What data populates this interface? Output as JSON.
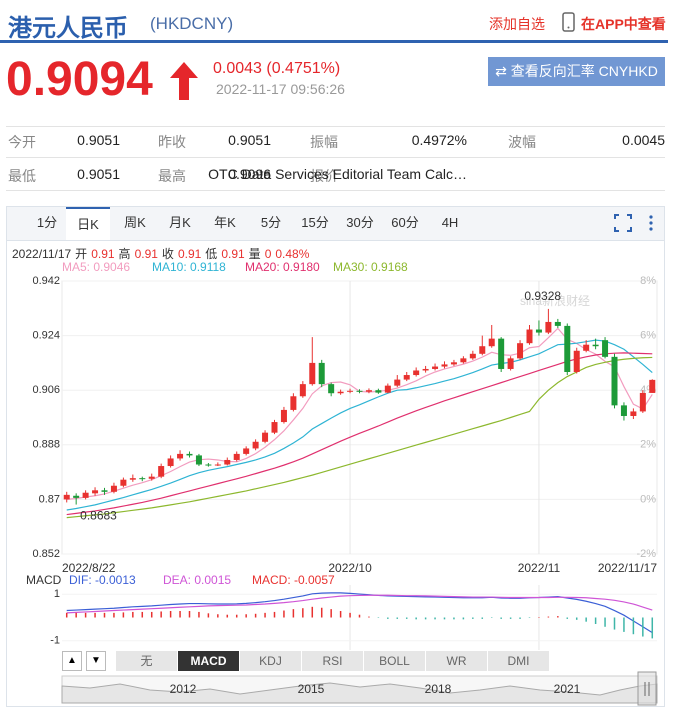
{
  "header": {
    "title": "港元人民币",
    "code": "(HKDCNY)",
    "add_watchlist": "添加自选",
    "view_in_app": "在APP中查看"
  },
  "quote": {
    "price": 0.9094,
    "change": "0.0043 (0.4751%)",
    "time": "2022-11-17 09:56:26",
    "reverse_button": "⇄ 查看反向汇率 CNYHKD"
  },
  "stats": {
    "rows": [
      [
        {
          "label": "今开",
          "value": 0.9051
        },
        {
          "label": "昨收",
          "value": 0.9051
        },
        {
          "label": "振幅",
          "value": "0.4972%"
        },
        {
          "label": "波幅",
          "value": 0.0045
        }
      ],
      [
        {
          "label": "最低",
          "value": 0.9051
        },
        {
          "label": "最高",
          "value": 0.9096
        },
        {
          "label": "报价",
          "value": "OTC Data Services Editorial Team Calc…"
        }
      ]
    ]
  },
  "tabs": {
    "items": [
      "1分",
      "日K",
      "周K",
      "月K",
      "年K",
      "5分",
      "15分",
      "30分",
      "60分",
      "4H"
    ],
    "active": 1
  },
  "chart_data": [
    {
      "type": "candlestick",
      "info": {
        "date": "2022/11/17",
        "items": [
          {
            "label": "开",
            "value": 0.91
          },
          {
            "label": "高",
            "value": 0.91
          },
          {
            "label": "收",
            "value": 0.91
          },
          {
            "label": "低",
            "value": 0.91
          },
          {
            "label": "量",
            "value": 0
          }
        ],
        "change": "0.48%"
      },
      "categories": [
        "2022/8/22",
        null,
        null,
        null,
        null,
        null,
        null,
        null,
        null,
        null,
        null,
        null,
        null,
        null,
        null,
        null,
        null,
        null,
        null,
        null,
        null,
        null,
        null,
        null,
        null,
        null,
        null,
        null,
        null,
        null,
        "2022/10",
        null,
        null,
        null,
        null,
        null,
        null,
        null,
        null,
        null,
        null,
        null,
        null,
        null,
        null,
        null,
        null,
        null,
        null,
        null,
        "2022/11",
        null,
        null,
        null,
        null,
        null,
        null,
        null,
        null,
        null,
        null,
        null,
        "2022/11/17"
      ],
      "open": [
        0.87,
        0.8712,
        0.8705,
        0.872,
        0.873,
        0.8725,
        0.8745,
        0.8765,
        0.877,
        0.8768,
        0.8775,
        0.881,
        0.8835,
        0.885,
        0.8845,
        0.8815,
        0.8812,
        0.8815,
        0.883,
        0.885,
        0.8868,
        0.889,
        0.892,
        0.8955,
        0.8995,
        0.904,
        0.908,
        0.915,
        0.908,
        0.905,
        0.9055,
        0.9058,
        0.9055,
        0.906,
        0.9052,
        0.9075,
        0.9095,
        0.911,
        0.9125,
        0.913,
        0.9138,
        0.9145,
        0.9152,
        0.9165,
        0.918,
        0.9205,
        0.923,
        0.913,
        0.9165,
        0.9215,
        0.926,
        0.925,
        0.9285,
        0.9272,
        0.912,
        0.919,
        0.921,
        0.9225,
        0.917,
        0.901,
        0.8975,
        0.899,
        0.9051
      ],
      "high": [
        0.8725,
        0.872,
        0.873,
        0.874,
        0.8738,
        0.8755,
        0.8772,
        0.8782,
        0.8775,
        0.8785,
        0.8818,
        0.8845,
        0.8862,
        0.8858,
        0.885,
        0.882,
        0.8822,
        0.8838,
        0.8858,
        0.8875,
        0.8898,
        0.8928,
        0.8962,
        0.9005,
        0.905,
        0.909,
        0.9235,
        0.916,
        0.9085,
        0.9062,
        0.9065,
        0.9063,
        0.9066,
        0.9065,
        0.9082,
        0.911,
        0.912,
        0.9135,
        0.914,
        0.9148,
        0.9155,
        0.916,
        0.9172,
        0.919,
        0.924,
        0.9275,
        0.9235,
        0.9172,
        0.9225,
        0.9275,
        0.929,
        0.9328,
        0.9295,
        0.928,
        0.92,
        0.9225,
        0.923,
        0.9235,
        0.918,
        0.902,
        0.9,
        0.906,
        0.9096
      ],
      "low": [
        0.869,
        0.8683,
        0.87,
        0.8712,
        0.8715,
        0.872,
        0.874,
        0.8758,
        0.876,
        0.8762,
        0.877,
        0.8805,
        0.8828,
        0.8838,
        0.881,
        0.8808,
        0.881,
        0.8812,
        0.8825,
        0.8845,
        0.8862,
        0.8885,
        0.8915,
        0.895,
        0.899,
        0.9035,
        0.9075,
        0.907,
        0.904,
        0.9045,
        0.905,
        0.905,
        0.905,
        0.9048,
        0.905,
        0.907,
        0.909,
        0.9105,
        0.9118,
        0.9125,
        0.9132,
        0.914,
        0.9148,
        0.916,
        0.9175,
        0.92,
        0.912,
        0.9125,
        0.916,
        0.921,
        0.924,
        0.9245,
        0.9265,
        0.911,
        0.9115,
        0.9185,
        0.9195,
        0.9165,
        0.9,
        0.896,
        0.8965,
        0.8985,
        0.9051
      ],
      "close": [
        0.8715,
        0.8705,
        0.8722,
        0.873,
        0.8725,
        0.8745,
        0.8765,
        0.877,
        0.8768,
        0.8775,
        0.881,
        0.8835,
        0.885,
        0.8845,
        0.8815,
        0.8812,
        0.8815,
        0.883,
        0.885,
        0.8868,
        0.889,
        0.892,
        0.8955,
        0.8995,
        0.904,
        0.908,
        0.915,
        0.908,
        0.905,
        0.9055,
        0.9058,
        0.9055,
        0.906,
        0.9052,
        0.9075,
        0.9095,
        0.911,
        0.9125,
        0.913,
        0.9138,
        0.9145,
        0.9152,
        0.9165,
        0.918,
        0.9205,
        0.923,
        0.913,
        0.9165,
        0.9215,
        0.926,
        0.925,
        0.9285,
        0.9272,
        0.912,
        0.919,
        0.921,
        0.9205,
        0.917,
        0.901,
        0.8975,
        0.899,
        0.9051,
        0.9094
      ],
      "up_color": "#e8312f",
      "down_color": "#1d9a38",
      "ylim": [
        0.852,
        0.942
      ],
      "yticks": [
        0.942,
        0.924,
        0.906,
        0.888,
        0.87,
        0.852
      ],
      "y2lim": [
        -2,
        8
      ],
      "y2ticks": [
        {
          "value": 8,
          "label": "8%"
        },
        {
          "value": 6,
          "label": "6%"
        },
        {
          "value": 4,
          "label": "4%"
        },
        {
          "value": 2,
          "label": "2%"
        },
        {
          "value": 0,
          "label": "0%"
        },
        {
          "value": -2,
          "label": "-2%"
        }
      ],
      "grid": true,
      "series": [
        {
          "name": "MA5: 0.9046",
          "color": "#f29cbf",
          "values": [
            0.87,
            0.8703,
            0.8708,
            0.8712,
            0.8718,
            0.8727,
            0.8737,
            0.8747,
            0.8755,
            0.8765,
            0.8778,
            0.8792,
            0.8808,
            0.8823,
            0.8831,
            0.8833,
            0.883,
            0.8825,
            0.8824,
            0.8835,
            0.8851,
            0.8872,
            0.8897,
            0.8926,
            0.8962,
            0.9,
            0.9048,
            0.9074,
            0.9085,
            0.9087,
            0.9078,
            0.9056,
            0.9054,
            0.9056,
            0.906,
            0.9067,
            0.9078,
            0.9091,
            0.9107,
            0.912,
            0.913,
            0.9138,
            0.9146,
            0.9156,
            0.9169,
            0.9185,
            0.9177,
            0.9175,
            0.9182,
            0.92,
            0.9204,
            0.9233,
            0.9264,
            0.9228,
            0.9214,
            0.9194,
            0.9179,
            0.9155,
            0.9137,
            0.9072,
            0.9014,
            0.8998,
            0.9046
          ]
        },
        {
          "name": "MA10: 0.9118",
          "color": "#2fb4d4",
          "values": [
            0.8665,
            0.867,
            0.8676,
            0.8682,
            0.869,
            0.8698,
            0.8706,
            0.8715,
            0.8724,
            0.8733,
            0.8743,
            0.8754,
            0.8766,
            0.8778,
            0.8788,
            0.8796,
            0.8802,
            0.8808,
            0.8815,
            0.8822,
            0.883,
            0.884,
            0.8852,
            0.8868,
            0.8886,
            0.8906,
            0.8932,
            0.895,
            0.8968,
            0.8985,
            0.9,
            0.9012,
            0.9025,
            0.9038,
            0.905,
            0.906,
            0.9062,
            0.9068,
            0.9075,
            0.9082,
            0.909,
            0.9098,
            0.9108,
            0.9118,
            0.913,
            0.9143,
            0.9148,
            0.9152,
            0.916,
            0.917,
            0.918,
            0.9195,
            0.921,
            0.9212,
            0.9215,
            0.922,
            0.9225,
            0.9222,
            0.921,
            0.9195,
            0.917,
            0.9145,
            0.9118
          ]
        },
        {
          "name": "MA20: 0.9180",
          "color": "#e0306e",
          "values": [
            0.865,
            0.8654,
            0.8658,
            0.8662,
            0.8667,
            0.8672,
            0.8678,
            0.8684,
            0.869,
            0.8697,
            0.8704,
            0.8712,
            0.872,
            0.8728,
            0.8736,
            0.8744,
            0.8752,
            0.876,
            0.8768,
            0.8776,
            0.8785,
            0.8794,
            0.8803,
            0.8813,
            0.8824,
            0.8836,
            0.885,
            0.8864,
            0.8878,
            0.8892,
            0.8905,
            0.8918,
            0.893,
            0.8942,
            0.8955,
            0.8968,
            0.898,
            0.8992,
            0.9003,
            0.9014,
            0.9025,
            0.9035,
            0.9045,
            0.9055,
            0.9065,
            0.9075,
            0.9085,
            0.9095,
            0.9105,
            0.9115,
            0.9125,
            0.9135,
            0.9145,
            0.9155,
            0.9163,
            0.917,
            0.9176,
            0.918,
            0.9182,
            0.9183,
            0.9182,
            0.9181,
            0.918
          ]
        },
        {
          "name": "MA30: 0.9168",
          "color": "#8db82e",
          "values": [
            0.864,
            0.8643,
            0.8646,
            0.8649,
            0.8652,
            0.8656,
            0.866,
            0.8664,
            0.8668,
            0.8672,
            0.8677,
            0.8682,
            0.8687,
            0.8692,
            0.8698,
            0.8704,
            0.871,
            0.8716,
            0.8722,
            0.8728,
            0.8735,
            0.8742,
            0.8749,
            0.8756,
            0.8764,
            0.8772,
            0.878,
            0.8789,
            0.8798,
            0.8807,
            0.8816,
            0.8825,
            0.8834,
            0.8843,
            0.8852,
            0.8861,
            0.887,
            0.8879,
            0.8888,
            0.8897,
            0.8906,
            0.8915,
            0.8924,
            0.8933,
            0.8942,
            0.8951,
            0.896,
            0.897,
            0.898,
            0.899,
            0.903,
            0.906,
            0.9085,
            0.9105,
            0.912,
            0.9135,
            0.9145,
            0.9152,
            0.9158,
            0.9162,
            0.9165,
            0.9167,
            0.9168
          ]
        }
      ],
      "annotations": [
        {
          "value": 0.9328
        },
        {
          "value": 0.8683
        }
      ],
      "watermark": "sina新浪财经"
    },
    {
      "type": "macd",
      "title": "MACD",
      "ylim": [
        -1.4,
        1.4
      ],
      "yticks": [
        1,
        -1
      ],
      "series": [
        {
          "name": "DIF: -0.0013",
          "color": "#3b5fd6",
          "values": [
            0.3,
            0.32,
            0.34,
            0.36,
            0.38,
            0.4,
            0.43,
            0.46,
            0.48,
            0.5,
            0.53,
            0.56,
            0.58,
            0.6,
            0.6,
            0.59,
            0.58,
            0.58,
            0.59,
            0.61,
            0.64,
            0.68,
            0.73,
            0.79,
            0.86,
            0.93,
            1.02,
            1.05,
            1.06,
            1.06,
            1.04,
            1.01,
            0.98,
            0.95,
            0.93,
            0.92,
            0.91,
            0.9,
            0.89,
            0.88,
            0.87,
            0.86,
            0.85,
            0.85,
            0.85,
            0.87,
            0.84,
            0.83,
            0.83,
            0.85,
            0.86,
            0.88,
            0.9,
            0.84,
            0.78,
            0.7,
            0.6,
            0.48,
            0.3,
            0.1,
            -0.15,
            -0.4,
            -0.65
          ]
        },
        {
          "name": "DEA: 0.0015",
          "color": "#cf55d6",
          "values": [
            0.2,
            0.22,
            0.24,
            0.26,
            0.28,
            0.3,
            0.32,
            0.34,
            0.36,
            0.38,
            0.4,
            0.42,
            0.44,
            0.46,
            0.48,
            0.5,
            0.51,
            0.52,
            0.53,
            0.54,
            0.56,
            0.58,
            0.61,
            0.64,
            0.68,
            0.73,
            0.79,
            0.84,
            0.88,
            0.92,
            0.94,
            0.95,
            0.96,
            0.96,
            0.96,
            0.95,
            0.94,
            0.94,
            0.93,
            0.92,
            0.91,
            0.9,
            0.89,
            0.88,
            0.88,
            0.88,
            0.87,
            0.86,
            0.86,
            0.86,
            0.86,
            0.86,
            0.87,
            0.87,
            0.86,
            0.85,
            0.82,
            0.79,
            0.74,
            0.67,
            0.58,
            0.45,
            0.32
          ]
        },
        {
          "name": "MACD: -0.0057",
          "type": "bar",
          "color": "#e8312f",
          "negative_color": "#3fb6a8",
          "values": [
            0.2,
            0.2,
            0.2,
            0.2,
            0.2,
            0.2,
            0.22,
            0.24,
            0.24,
            0.24,
            0.26,
            0.28,
            0.28,
            0.28,
            0.24,
            0.18,
            0.14,
            0.12,
            0.12,
            0.14,
            0.16,
            0.2,
            0.24,
            0.3,
            0.36,
            0.4,
            0.46,
            0.42,
            0.36,
            0.28,
            0.2,
            0.12,
            0.04,
            -0.02,
            -0.06,
            -0.06,
            -0.06,
            -0.08,
            -0.08,
            -0.08,
            -0.08,
            -0.08,
            -0.08,
            -0.06,
            -0.06,
            -0.02,
            -0.06,
            -0.06,
            -0.06,
            -0.02,
            0,
            0.04,
            0.06,
            -0.06,
            -0.1,
            -0.18,
            -0.28,
            -0.4,
            -0.52,
            -0.62,
            -0.72,
            -0.82,
            -0.9
          ]
        }
      ]
    }
  ],
  "indicator_tabs": {
    "items": [
      "▲",
      "▼",
      "无",
      "MACD",
      "KDJ",
      "RSI",
      "BOLL",
      "WR",
      "DMI"
    ],
    "active": 3
  },
  "navigator": {
    "labels": [
      "2012",
      "2015",
      "2018",
      "2021"
    ]
  }
}
